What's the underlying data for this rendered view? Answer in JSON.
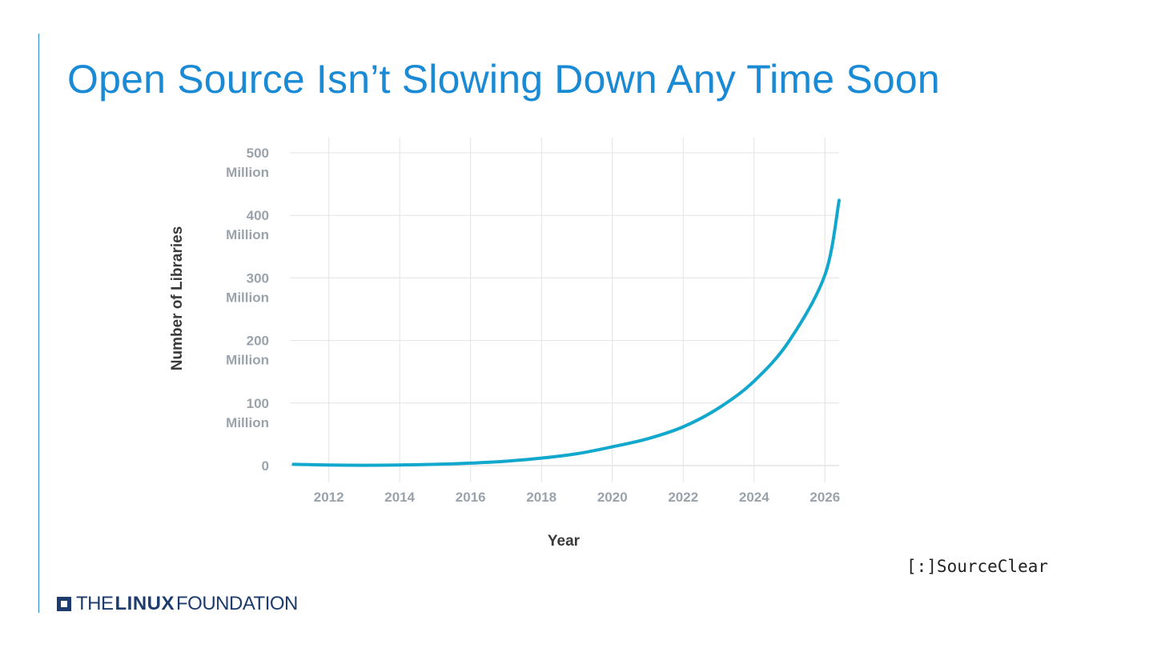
{
  "title": "Open Source Isn’t Slowing Down Any Time Soon",
  "brand": {
    "watermark": "[:]SourceClear",
    "footer": {
      "pre": "THE",
      "bold": "LINUX",
      "post": "FOUNDATION"
    }
  },
  "colors": {
    "accent": "#1a8ad4",
    "line": "#12a7cc",
    "grid": "#e3e3e3",
    "tick": "#9aa3ab"
  },
  "chart_data": {
    "type": "line",
    "title": "",
    "xlabel": "Year",
    "ylabel": "Number of Libraries",
    "xlim": [
      2010.9,
      2026.4
    ],
    "ylim": [
      0,
      500
    ],
    "x_ticks": [
      2012,
      2014,
      2016,
      2018,
      2020,
      2022,
      2024,
      2026
    ],
    "x_tick_labels": [
      "2012",
      "2014",
      "2016",
      "2018",
      "2020",
      "2022",
      "2024",
      "2026"
    ],
    "y_ticks": [
      0,
      100,
      200,
      300,
      400,
      500
    ],
    "y_tick_labels": [
      [
        "0"
      ],
      [
        "100",
        "Million"
      ],
      [
        "200",
        "Million"
      ],
      [
        "300",
        "Million"
      ],
      [
        "400",
        "Million"
      ],
      [
        "500",
        "Million"
      ]
    ],
    "grid": true,
    "legend": "none",
    "series": [
      {
        "name": "Number of Libraries",
        "x": [
          2011,
          2012,
          2013,
          2014,
          2015,
          2016,
          2017,
          2018,
          2019,
          2020,
          2021,
          2022,
          2023,
          2024,
          2025,
          2026,
          2026.4
        ],
        "values": [
          2,
          1,
          0.5,
          1,
          2,
          4,
          7,
          12,
          19,
          30,
          43,
          62,
          92,
          135,
          200,
          305,
          424
        ]
      }
    ]
  }
}
